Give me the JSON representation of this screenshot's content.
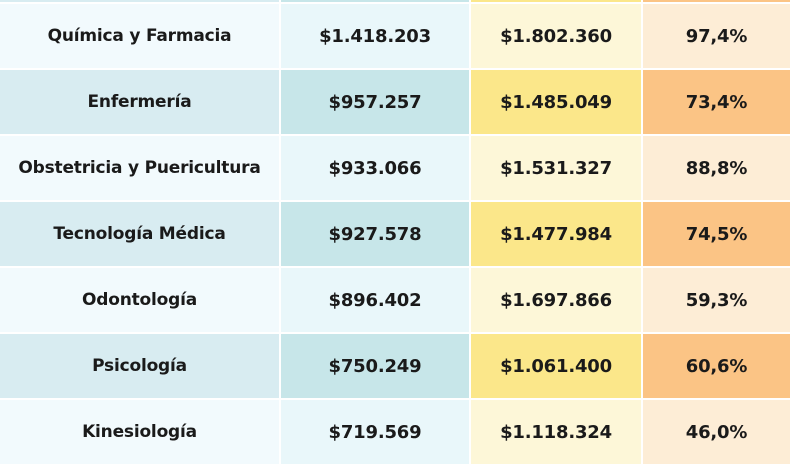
{
  "table": {
    "header": [
      "",
      "",
      "",
      ""
    ],
    "rows": [
      {
        "career": "Química y Farmacia",
        "value1": "$1.418.203",
        "value2": "$1.802.360",
        "percent": "97,4%"
      },
      {
        "career": "Enfermería",
        "value1": "$957.257",
        "value2": "$1.485.049",
        "percent": "73,4%"
      },
      {
        "career": "Obstetricia y Puericultura",
        "value1": "$933.066",
        "value2": "$1.531.327",
        "percent": "88,8%"
      },
      {
        "career": "Tecnología Médica",
        "value1": "$927.578",
        "value2": "$1.477.984",
        "percent": "74,5%"
      },
      {
        "career": "Odontología",
        "value1": "$896.402",
        "value2": "$1.697.866",
        "percent": "59,3%"
      },
      {
        "career": "Psicología",
        "value1": "$750.249",
        "value2": "$1.061.400",
        "percent": "60,6%"
      },
      {
        "career": "Kinesiología",
        "value1": "$719.569",
        "value2": "$1.118.324",
        "percent": "46,0%"
      }
    ]
  },
  "colors": {
    "col1_dark": "#d8ecf1",
    "col2_dark": "#c7e6e9",
    "col3_dark": "#fbe78a",
    "col4_dark": "#fbc485"
  }
}
